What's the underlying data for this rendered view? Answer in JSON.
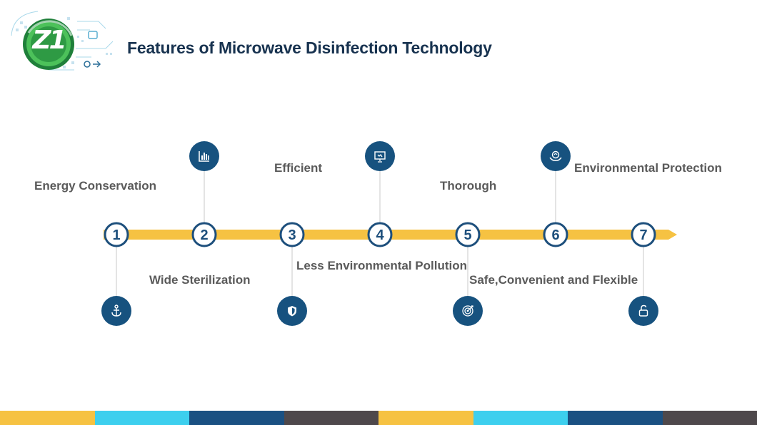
{
  "slide": {
    "title": "Features of Microwave Disinfection Technology",
    "logo_text": "Z1"
  },
  "timeline": {
    "steps": [
      {
        "number": "1",
        "label": "Energy Conservation",
        "icon": "anchor-icon",
        "icon_side": "bottom"
      },
      {
        "number": "2",
        "label": "Wide Sterilization",
        "icon": "bar-chart-icon",
        "icon_side": "top"
      },
      {
        "number": "3",
        "label": "Efficient",
        "icon": "shield-icon",
        "icon_side": "bottom"
      },
      {
        "number": "4",
        "label": "Less Environmental Pollution",
        "icon": "presentation-icon",
        "icon_side": "top"
      },
      {
        "number": "5",
        "label": "Thorough",
        "icon": "target-icon",
        "icon_side": "bottom"
      },
      {
        "number": "6",
        "label": "Safe,Convenient and Flexible",
        "icon": "eco-hands-icon",
        "icon_side": "top"
      },
      {
        "number": "7",
        "label": "Environmental Protection",
        "icon": "lock-icon",
        "icon_side": "bottom"
      }
    ]
  },
  "colors": {
    "arrow": "#f6c242",
    "node_border": "#1d4f7c",
    "icon_fill": "#17527f",
    "label_text": "#5a5a5a",
    "title_text": "#17324f",
    "footer_stripes": [
      "#f6c242",
      "#3dcfee",
      "#1a5082",
      "#4e484b",
      "#f6c242",
      "#3dcfee",
      "#1a5082",
      "#4e484b"
    ]
  }
}
